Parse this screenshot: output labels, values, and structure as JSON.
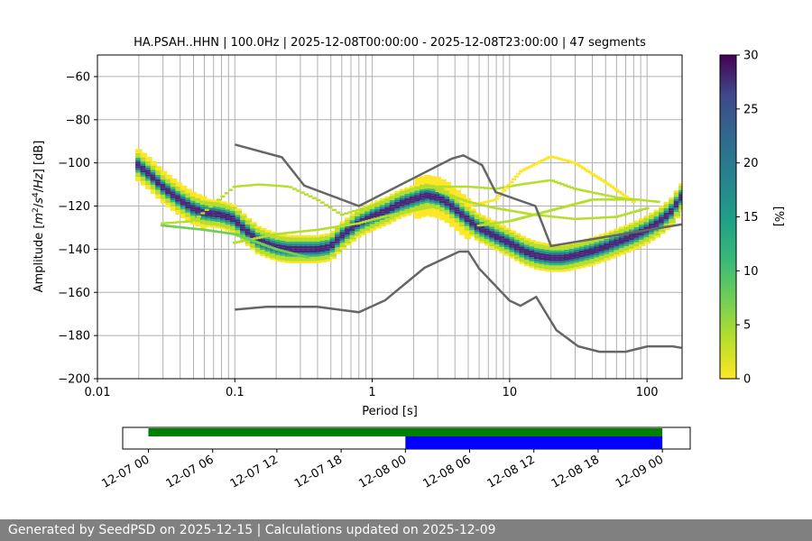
{
  "chart_data": {
    "type": "heatmap",
    "title": "HA.PSAH..HHN | 100.0Hz | 2025-12-08T00:00:00 - 2025-12-08T23:00:00 | 47 segments",
    "xlabel": "Period [s]",
    "ylabel": "Amplitude [m²/s⁴/Hz] [dB]",
    "xscale": "log",
    "xlim": [
      0.01,
      180
    ],
    "ylim": [
      -200,
      -50
    ],
    "x_ticks": [
      "0.01",
      "0.1",
      "1",
      "10",
      "100"
    ],
    "y_ticks": [
      "−60",
      "−80",
      "−100",
      "−120",
      "−140",
      "−160",
      "−180",
      "−200"
    ],
    "grid": true,
    "colorbar": {
      "label": "[%]",
      "range": [
        0,
        30
      ],
      "ticks": [
        "0",
        "5",
        "10",
        "15",
        "20",
        "25",
        "30"
      ],
      "colormap": "viridis_r"
    },
    "ppsd_mode": {
      "period": [
        0.02,
        0.025,
        0.03,
        0.04,
        0.05,
        0.06,
        0.08,
        0.1,
        0.12,
        0.15,
        0.2,
        0.25,
        0.3,
        0.4,
        0.5,
        0.6,
        0.8,
        1.0,
        1.3,
        1.6,
        2.0,
        2.5,
        3.0,
        3.5,
        4.0,
        5.0,
        6.0,
        7.0,
        8.0,
        10,
        13,
        16,
        20,
        25,
        30,
        40,
        50,
        60,
        80,
        100,
        120,
        150,
        180
      ],
      "db": [
        -101,
        -106,
        -111,
        -117,
        -121,
        -123,
        -124,
        -126,
        -131,
        -136,
        -139,
        -140,
        -140,
        -140,
        -139,
        -134,
        -128,
        -125,
        -122,
        -119,
        -117,
        -115,
        -116,
        -118,
        -121,
        -126,
        -130,
        -132,
        -134,
        -137,
        -141,
        -143,
        -144,
        -144,
        -143,
        -141,
        -139,
        -137,
        -134,
        -131,
        -128,
        -123,
        -116
      ]
    },
    "ppsd_spread": [
      {
        "period": [
          0.03,
          0.05,
          0.08,
          0.1,
          0.15,
          0.25,
          0.4,
          0.6,
          1.0,
          2.0,
          3.0
        ],
        "db": [
          -128,
          -127,
          -116,
          -111,
          -110,
          -111,
          -117,
          -124,
          -120,
          -112,
          -111
        ],
        "level": 2
      },
      {
        "period": [
          0.1,
          0.2,
          0.4,
          0.8,
          1.2,
          2.0,
          3.0
        ],
        "db": [
          -137,
          -133,
          -131,
          -128,
          -125,
          -122,
          -120
        ],
        "level": 2
      },
      {
        "period": [
          3.0,
          5.0,
          8.0,
          12,
          20,
          30,
          60,
          120
        ],
        "db": [
          -111,
          -111,
          -112,
          -110,
          -108,
          -112,
          -116,
          -118
        ],
        "level": 2
      },
      {
        "period": [
          5.0,
          8.0,
          12,
          20,
          30,
          50,
          80
        ],
        "db": [
          -120,
          -117,
          -104,
          -97,
          -100,
          -109,
          -118
        ],
        "level": 1
      },
      {
        "period": [
          3.0,
          5.0,
          8.0,
          15,
          30,
          60,
          100
        ],
        "db": [
          -113,
          -118,
          -121,
          -124,
          -126,
          -125,
          -121
        ],
        "level": 3
      },
      {
        "period": [
          6.0,
          10,
          20,
          40,
          80
        ],
        "db": [
          -129,
          -127,
          -122,
          -117,
          -117
        ],
        "level": 2
      },
      {
        "period": [
          0.03,
          0.06,
          0.1,
          0.2,
          0.35
        ],
        "db": [
          -129,
          -131,
          -133,
          -140,
          -144
        ],
        "level": 6
      }
    ],
    "noise_model_high": {
      "period": [
        0.1,
        0.22,
        0.32,
        0.8,
        3.8,
        4.6,
        6.3,
        7.9,
        15.4,
        20,
        178
      ],
      "db": [
        -91.5,
        -97.4,
        -110.5,
        -120,
        -98,
        -96.5,
        -101,
        -113.5,
        -120,
        -138.5,
        -128.5
      ]
    },
    "noise_model_low": {
      "period": [
        0.1,
        0.17,
        0.4,
        0.8,
        1.24,
        2.4,
        4.3,
        5,
        6,
        10,
        12,
        15.6,
        21.9,
        31.6,
        45,
        70,
        101,
        154,
        178
      ],
      "db": [
        -168,
        -166.7,
        -166.7,
        -169.2,
        -163.7,
        -148.6,
        -141.1,
        -141.1,
        -149,
        -163.8,
        -166.2,
        -162.1,
        -177.5,
        -185,
        -187.5,
        -187.5,
        -185,
        -185,
        -185.7
      ]
    },
    "time_axis": {
      "ticks": [
        "12-07 00",
        "12-07 06",
        "12-07 12",
        "12-07 18",
        "12-08 00",
        "12-08 06",
        "12-08 12",
        "12-08 18",
        "12-09 00"
      ],
      "range_hours": [
        -2.4,
        50.6
      ],
      "data_available": {
        "start_hour": 0,
        "end_hour": 48,
        "color": "#008000"
      },
      "data_used": {
        "start_hour": 24,
        "end_hour": 48,
        "color": "#0000ff"
      }
    }
  },
  "footer": {
    "text": "Generated by SeedPSD on 2025-12-15 | Calculations updated on 2025-12-09"
  }
}
